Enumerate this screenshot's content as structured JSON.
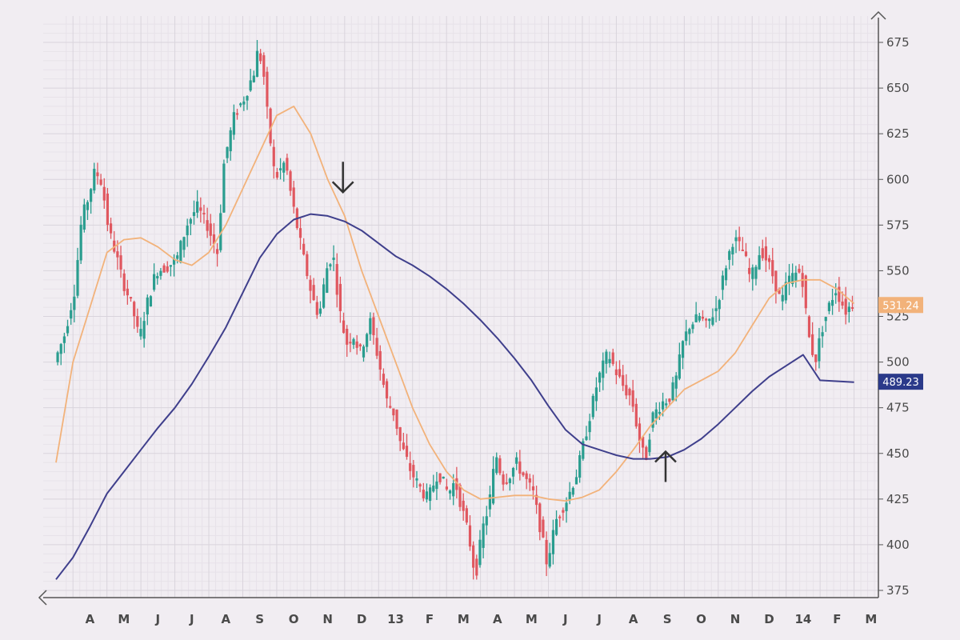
{
  "chart_data": {
    "type": "candlestick",
    "title": "",
    "xlabel": "",
    "ylabel": "",
    "ylim": [
      370,
      685
    ],
    "y_ticks": [
      375,
      400,
      425,
      450,
      475,
      500,
      525,
      550,
      575,
      600,
      625,
      650,
      675
    ],
    "x_ticks": [
      "A",
      "M",
      "J",
      "J",
      "A",
      "S",
      "O",
      "N",
      "D",
      "13",
      "F",
      "M",
      "A",
      "M",
      "J",
      "J",
      "A",
      "S",
      "O",
      "N",
      "D",
      "14",
      "F",
      "M"
    ],
    "grid": true,
    "colors": {
      "up": "#2a9d8f",
      "down": "#e0575f",
      "fast_ma": "#f2b27a",
      "slow_ma": "#3f3f8c",
      "background": "#f1edf2",
      "grid_major": "#d9d4dc",
      "grid_minor": "#e7e2e9",
      "axis": "#555555"
    },
    "price_path": [
      [
        0,
        500
      ],
      [
        0.3,
        515
      ],
      [
        0.6,
        540
      ],
      [
        0.8,
        578
      ],
      [
        1.0,
        590
      ],
      [
        1.2,
        605
      ],
      [
        1.4,
        598
      ],
      [
        1.6,
        572
      ],
      [
        1.8,
        560
      ],
      [
        2.0,
        545
      ],
      [
        2.3,
        530
      ],
      [
        2.5,
        512
      ],
      [
        2.7,
        530
      ],
      [
        3.0,
        550
      ],
      [
        3.3,
        552
      ],
      [
        3.6,
        556
      ],
      [
        3.9,
        575
      ],
      [
        4.2,
        585
      ],
      [
        4.5,
        575
      ],
      [
        4.8,
        560
      ],
      [
        5.0,
        610
      ],
      [
        5.3,
        635
      ],
      [
        5.6,
        645
      ],
      [
        5.9,
        660
      ],
      [
        6.0,
        672
      ],
      [
        6.15,
        660
      ],
      [
        6.3,
        630
      ],
      [
        6.5,
        600
      ],
      [
        6.8,
        610
      ],
      [
        7.0,
        588
      ],
      [
        7.3,
        560
      ],
      [
        7.6,
        535
      ],
      [
        7.8,
        525
      ],
      [
        8.0,
        550
      ],
      [
        8.2,
        560
      ],
      [
        8.4,
        528
      ],
      [
        8.6,
        510
      ],
      [
        8.8,
        515
      ],
      [
        9.0,
        505
      ],
      [
        9.3,
        522
      ],
      [
        9.5,
        505
      ],
      [
        9.8,
        478
      ],
      [
        10.0,
        472
      ],
      [
        10.2,
        455
      ],
      [
        10.5,
        440
      ],
      [
        10.8,
        430
      ],
      [
        11.0,
        425
      ],
      [
        11.3,
        440
      ],
      [
        11.6,
        428
      ],
      [
        11.8,
        435
      ],
      [
        12.0,
        420
      ],
      [
        12.2,
        405
      ],
      [
        12.4,
        382
      ],
      [
        12.6,
        408
      ],
      [
        12.8,
        422
      ],
      [
        13.0,
        450
      ],
      [
        13.2,
        435
      ],
      [
        13.4,
        438
      ],
      [
        13.6,
        445
      ],
      [
        13.9,
        435
      ],
      [
        14.1,
        428
      ],
      [
        14.3,
        410
      ],
      [
        14.5,
        390
      ],
      [
        14.8,
        415
      ],
      [
        15.1,
        425
      ],
      [
        15.4,
        440
      ],
      [
        15.7,
        465
      ],
      [
        16.0,
        490
      ],
      [
        16.3,
        505
      ],
      [
        16.6,
        492
      ],
      [
        16.8,
        485
      ],
      [
        17.0,
        480
      ],
      [
        17.2,
        460
      ],
      [
        17.4,
        445
      ],
      [
        17.6,
        470
      ],
      [
        17.9,
        478
      ],
      [
        18.1,
        480
      ],
      [
        18.3,
        490
      ],
      [
        18.5,
        510
      ],
      [
        18.7,
        520
      ],
      [
        19.0,
        525
      ],
      [
        19.2,
        520
      ],
      [
        19.5,
        530
      ],
      [
        19.8,
        555
      ],
      [
        20.0,
        568
      ],
      [
        20.3,
        560
      ],
      [
        20.5,
        545
      ],
      [
        20.8,
        562
      ],
      [
        21.0,
        555
      ],
      [
        21.2,
        545
      ],
      [
        21.4,
        532
      ],
      [
        21.6,
        545
      ],
      [
        21.8,
        548
      ],
      [
        22.0,
        550
      ],
      [
        22.2,
        515
      ],
      [
        22.4,
        500
      ],
      [
        22.6,
        518
      ],
      [
        22.8,
        530
      ],
      [
        23.0,
        540
      ],
      [
        23.3,
        528
      ],
      [
        23.5,
        532
      ]
    ],
    "series": [
      {
        "type": "moving-average",
        "color": "#f2b27a",
        "points": [
          [
            0,
            445
          ],
          [
            0.5,
            500
          ],
          [
            1.0,
            530
          ],
          [
            1.5,
            560
          ],
          [
            2.0,
            567
          ],
          [
            2.5,
            568
          ],
          [
            3.0,
            563
          ],
          [
            3.5,
            556
          ],
          [
            4.0,
            553
          ],
          [
            4.5,
            560
          ],
          [
            5.0,
            575
          ],
          [
            5.5,
            595
          ],
          [
            6.0,
            615
          ],
          [
            6.5,
            635
          ],
          [
            7.0,
            640
          ],
          [
            7.5,
            625
          ],
          [
            8.0,
            600
          ],
          [
            8.5,
            580
          ],
          [
            9.0,
            550
          ],
          [
            9.5,
            525
          ],
          [
            10.0,
            500
          ],
          [
            10.5,
            475
          ],
          [
            11.0,
            455
          ],
          [
            11.5,
            440
          ],
          [
            12.0,
            430
          ],
          [
            12.5,
            425
          ],
          [
            13.0,
            426
          ],
          [
            13.5,
            427
          ],
          [
            14.0,
            427
          ],
          [
            14.5,
            425
          ],
          [
            15.0,
            424
          ],
          [
            15.5,
            426
          ],
          [
            16.0,
            430
          ],
          [
            16.5,
            440
          ],
          [
            17.0,
            452
          ],
          [
            17.5,
            465
          ],
          [
            18.0,
            475
          ],
          [
            18.5,
            485
          ],
          [
            19.0,
            490
          ],
          [
            19.5,
            495
          ],
          [
            20.0,
            505
          ],
          [
            20.5,
            520
          ],
          [
            21.0,
            535
          ],
          [
            21.5,
            543
          ],
          [
            22.0,
            545
          ],
          [
            22.5,
            545
          ],
          [
            23.0,
            540
          ],
          [
            23.5,
            532
          ]
        ]
      },
      {
        "type": "moving-average",
        "color": "#3f3f8c",
        "points": [
          [
            0,
            381
          ],
          [
            0.5,
            393
          ],
          [
            1.0,
            410
          ],
          [
            1.5,
            428
          ],
          [
            2.0,
            440
          ],
          [
            2.5,
            452
          ],
          [
            3.0,
            464
          ],
          [
            3.5,
            475
          ],
          [
            4.0,
            488
          ],
          [
            4.5,
            503
          ],
          [
            5.0,
            519
          ],
          [
            5.5,
            538
          ],
          [
            6.0,
            557
          ],
          [
            6.5,
            570
          ],
          [
            7.0,
            578
          ],
          [
            7.5,
            581
          ],
          [
            8.0,
            580
          ],
          [
            8.5,
            577
          ],
          [
            9.0,
            572
          ],
          [
            9.5,
            565
          ],
          [
            10.0,
            558
          ],
          [
            10.5,
            553
          ],
          [
            11.0,
            547
          ],
          [
            11.5,
            540
          ],
          [
            12.0,
            532
          ],
          [
            12.5,
            523
          ],
          [
            13.0,
            513
          ],
          [
            13.5,
            502
          ],
          [
            14.0,
            490
          ],
          [
            14.5,
            476
          ],
          [
            15.0,
            463
          ],
          [
            15.5,
            455
          ],
          [
            16.0,
            452
          ],
          [
            16.5,
            449
          ],
          [
            17.0,
            447
          ],
          [
            17.5,
            447
          ],
          [
            18.0,
            448
          ],
          [
            18.5,
            452
          ],
          [
            19.0,
            458
          ],
          [
            19.5,
            466
          ],
          [
            20.0,
            475
          ],
          [
            20.5,
            484
          ],
          [
            21.0,
            492
          ],
          [
            21.5,
            498
          ],
          [
            22.0,
            504
          ],
          [
            22.5,
            490
          ],
          [
            23.5,
            489
          ]
        ]
      }
    ],
    "price_labels": [
      {
        "text": "531.24",
        "value": 531.24,
        "color": "#f2b27a",
        "text_color": "#ffffff"
      },
      {
        "text": "489.23",
        "value": 489.23,
        "color": "#2b3a8a",
        "text_color": "#ffffff"
      }
    ],
    "annotations": [
      {
        "type": "arrow-down",
        "x": 8.45,
        "y_tip": 593
      },
      {
        "type": "arrow-up",
        "x": 17.95,
        "y_tip": 451
      }
    ]
  }
}
